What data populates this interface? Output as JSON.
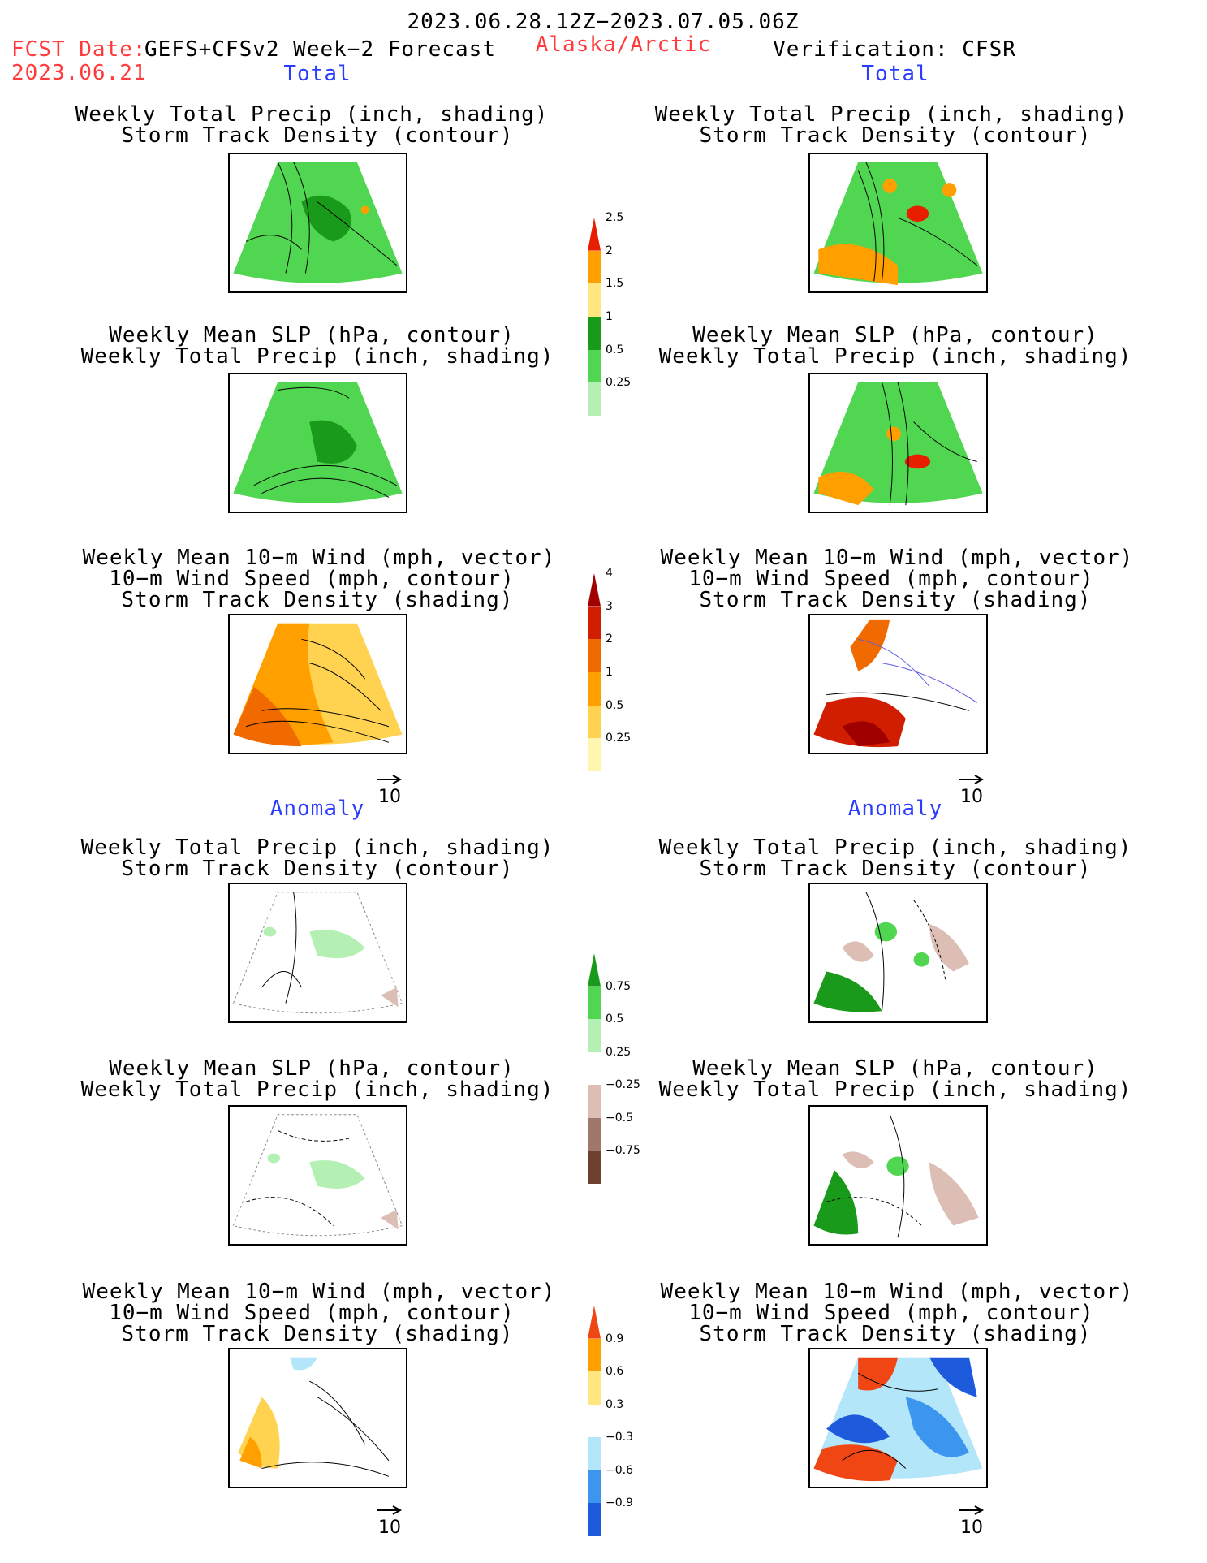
{
  "header": {
    "period": "2023.06.28.12Z−2023.07.05.06Z",
    "fcst_label": "FCST Date:",
    "model": "GEFS+CFSv2 Week−2 Forecast",
    "fcst_date": "2023.06.21",
    "region": "Alaska/Arctic",
    "verification": "Verification: CFSR"
  },
  "sections": {
    "total_left": "Total",
    "total_right": "Total",
    "anomaly_left": "Anomaly",
    "anomaly_right": "Anomaly"
  },
  "titles": {
    "precip_track": [
      "Weekly Total Precip (inch, shading)",
      "Storm Track Density (contour)"
    ],
    "slp_precip": [
      "Weekly Mean SLP (hPa, contour)",
      "Weekly Total Precip (inch, shading)"
    ],
    "wind_track": [
      "Weekly Mean 10−m Wind (mph, vector)",
      "10−m Wind Speed (mph, contour)",
      "Storm Track Density (shading)"
    ]
  },
  "vector_scale": "10",
  "colorbars": {
    "precip_total": {
      "colors": [
        "#b4f0b4",
        "#50d650",
        "#1a9a1a",
        "#ffe680",
        "#ffa000",
        "#e81e00"
      ],
      "labels": [
        "0.25",
        "0.5",
        "1",
        "1.5",
        "2",
        "2.5"
      ]
    },
    "track_total": {
      "colors": [
        "#fff6b0",
        "#ffd250",
        "#ffa000",
        "#f06a00",
        "#d21e00",
        "#a00000"
      ],
      "labels": [
        "0.25",
        "0.5",
        "1",
        "2",
        "3",
        "4"
      ]
    },
    "precip_anom": {
      "colors": [
        "#6e4030",
        "#a0786a",
        "#dcbeb4",
        "#ffffff",
        "#b4f0b4",
        "#50d650",
        "#1a9a1a"
      ],
      "labels": [
        "−0.75",
        "−0.5",
        "−0.25",
        "0.25",
        "0.5",
        "0.75"
      ]
    },
    "track_anom": {
      "colors": [
        "#1e5adc",
        "#3c96f0",
        "#b4e6fa",
        "#ffffff",
        "#ffe680",
        "#ffa000",
        "#f04614"
      ],
      "labels": [
        "−0.9",
        "−0.6",
        "−0.3",
        "0.3",
        "0.6",
        "0.9"
      ]
    }
  }
}
